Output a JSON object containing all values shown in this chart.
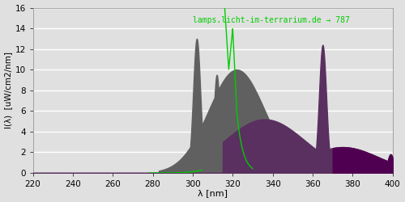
{
  "xlim": [
    220,
    400
  ],
  "ylim": [
    0,
    16
  ],
  "xlabel": "λ [nm]",
  "ylabel_line1": "I(λ)",
  "ylabel_line2": "[uW/cm2/nm]",
  "annotation": "lamps.licht-im-terrarium.de → 787",
  "bg_color": "#e0e0e0",
  "grid_color": "#ffffff",
  "yticks": [
    0,
    2,
    4,
    6,
    8,
    10,
    12,
    14,
    16
  ],
  "xticks": [
    220,
    240,
    260,
    280,
    300,
    320,
    340,
    360,
    380,
    400
  ],
  "uvb_color": "#606060",
  "uva_color": "#5a3060",
  "purple_color": "#500050",
  "green_line_color": "#00cc00",
  "figsize": [
    5.0,
    2.5
  ],
  "dpi": 100
}
